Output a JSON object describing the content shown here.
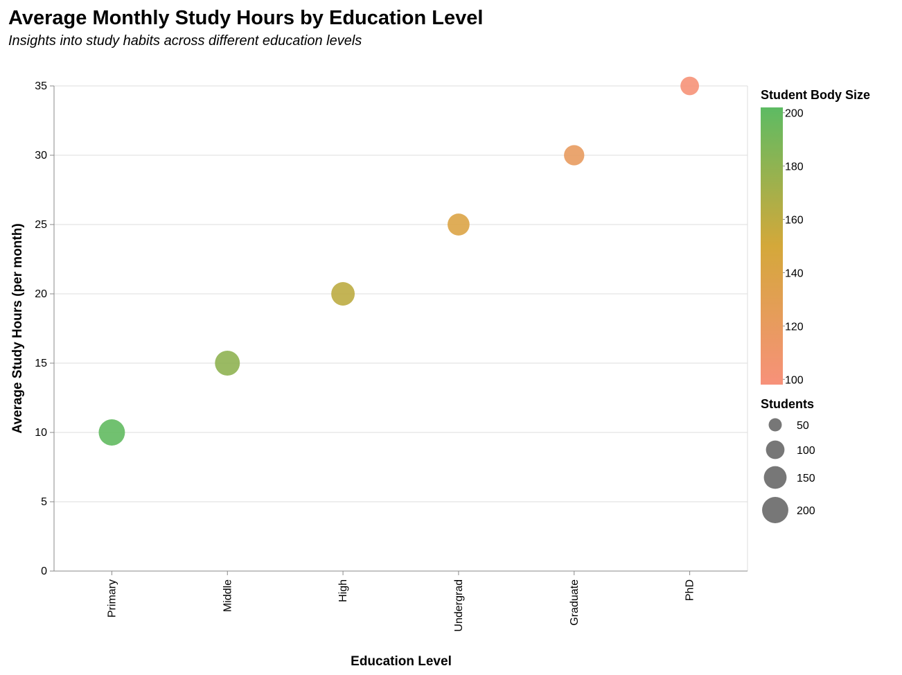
{
  "chart_data": {
    "type": "scatter",
    "title": "Average Monthly Study Hours by Education Level",
    "subtitle": "Insights into study habits across different education levels",
    "xlabel": "Education Level",
    "ylabel": "Average Study Hours (per month)",
    "categories": [
      "Primary",
      "Middle",
      "High",
      "Undergrad",
      "Graduate",
      "PhD"
    ],
    "points": [
      {
        "x": "Primary",
        "y": 10,
        "students": 200
      },
      {
        "x": "Middle",
        "y": 15,
        "students": 180
      },
      {
        "x": "High",
        "y": 20,
        "students": 160
      },
      {
        "x": "Undergrad",
        "y": 25,
        "students": 140
      },
      {
        "x": "Graduate",
        "y": 30,
        "students": 120
      },
      {
        "x": "PhD",
        "y": 35,
        "students": 100
      }
    ],
    "ylim": [
      0,
      35
    ],
    "yticks": [
      0,
      5,
      10,
      15,
      20,
      25,
      30,
      35
    ],
    "grid": true,
    "color_legend": {
      "title": "Student Body Size",
      "domain": [
        98,
        202
      ],
      "ticks": [
        100,
        120,
        140,
        160,
        180,
        200
      ],
      "color_low": "#f7917a",
      "color_mid": "#d4a83a",
      "color_high": "#5dbb63"
    },
    "size_legend": {
      "title": "Students",
      "values": [
        50,
        100,
        150,
        200
      ]
    }
  }
}
